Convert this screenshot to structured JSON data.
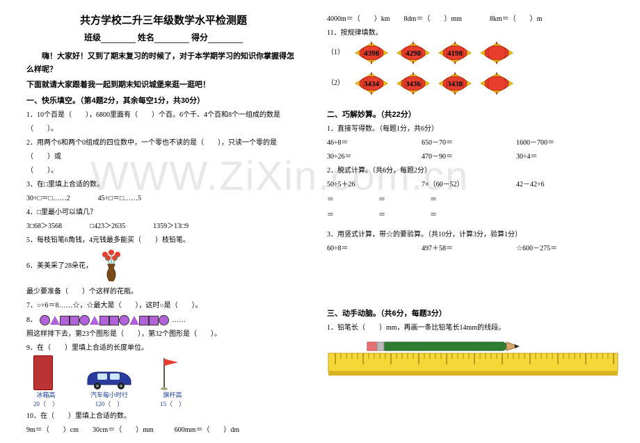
{
  "title": "共方学校二升三年级数学水平检测题",
  "subtitle_parts": {
    "class": "班级",
    "name": "姓名",
    "score": "得分"
  },
  "intro_l1": "嗨！大家好！又到了期末复习的时候了，对于本学期学习的知识你掌握得怎么样呢？",
  "intro_l2": "下面就请大家跟着我一起到期末知识城堡来逛一逛吧！",
  "sec1_h": "一、快乐填空。（第4题2分，其余每空1分，共30分）",
  "q1": "1．10个百是（　　），6800里面有（　　）个百。6个千、4个百和8个一组成的数是（　　）。",
  "q2": "2．用两个6和两个0组成的四位数中，一个零也不读的是（　　），只读一个零的是（　　）或",
  "q2b": "（　　）。",
  "q3": "3．在□里填上合适的数。",
  "q3a": "30÷□＝□……2　　　　45÷□＝□……5",
  "q4": "4．□里最小可以填几？",
  "q4a": "3□68＞3568　　　　□423＞2635　　　　1359＞13□9",
  "q5": "5．每枝铅笔6角钱，4元钱最多能买（　　）枝铅笔。",
  "q6": "6．美美采了28朵花，",
  "q6b": "最少要准备（　　）个这样的花瓶。",
  "q7": "7．○÷6＝8……☆，☆最大是（　　），这时○是（　　）。",
  "q8": "8．",
  "q8dots": "……",
  "q8b": "照这样排下去，第23个图形是（　　），第32个图形是（　　）。",
  "q9": "9．在（　　）里填上合适的长度单位。",
  "obj_brick_l1": "冰箱高",
  "obj_brick_l2": "20（　）",
  "obj_car_l1": "汽车每小时行",
  "obj_car_l2": "120（　）",
  "obj_flag_l1": "旗杆高",
  "obj_flag_l2": "15（　）",
  "q10": "10．在（　　）里填上合适的数。",
  "q10a": "9m＝（　　）cm　　30cm＝（　　）mm　　　600mm＝（　　）dm",
  "q10b": "4000m＝（　　）km　　8dm＝（　　）mm　　　　8km＝（　　）m",
  "q11": "11．按规律填数。",
  "q11_1": "（1）",
  "lantern_vals_1": [
    "4398",
    "4298",
    "4198",
    ""
  ],
  "q11_2": "（2）",
  "lantern_vals_2": [
    "3434",
    "3436",
    "3438",
    ""
  ],
  "sec2_h": "二、巧解妙算。（共22分）",
  "s2q1": "1．直接写得数。（每题1分，共6分）",
  "c1a": "46÷8＝",
  "c1b": "650－70＝",
  "c1c": "1600－700＝",
  "c2a": "30÷26＝",
  "c2b": "470－90＝",
  "c2c": "30÷4＝",
  "s2q2": "2．脱式计算。（共6分，每题2分）",
  "c3a": "50÷5＋26",
  "c3b": "7×（60－52）",
  "c3c": "42－42÷6",
  "s2q3": "3．用竖式计算，带☆的要验算。（共10分，计算3分，验算1分）",
  "c4a": "60÷8＝",
  "c4b": "497＋58＝",
  "c4c": "☆600－275＝",
  "sec3_h": "三、动手动脑。（共6分，每题3分）",
  "s3q1": "1．铅笔长（　　）mm，再画一条比铅笔长14mm的线段。",
  "watermark": "WWW.ZiXin.com.cn",
  "lantern_color": "#f2c21a",
  "lantern_red": "#e83e2e",
  "shape_purple": "#b162d8",
  "ruler_yellow": "#f6d738",
  "pencil_green": "#2e7d32"
}
